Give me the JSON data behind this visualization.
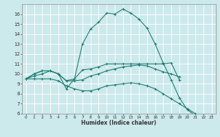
{
  "title": "",
  "xlabel": "Humidex (Indice chaleur)",
  "bg_color": "#cce9ec",
  "grid_color": "#ffffff",
  "line_color": "#1a7a6e",
  "xlim": [
    -0.5,
    23.5
  ],
  "ylim": [
    6,
    17
  ],
  "xticks": [
    0,
    1,
    2,
    3,
    4,
    5,
    6,
    7,
    8,
    9,
    10,
    11,
    12,
    13,
    14,
    15,
    16,
    17,
    18,
    19,
    20,
    21,
    22,
    23
  ],
  "yticks": [
    6,
    7,
    8,
    9,
    10,
    11,
    12,
    13,
    14,
    15,
    16
  ],
  "series": [
    {
      "x": [
        0,
        1,
        2,
        3,
        4,
        5,
        6,
        7,
        8,
        9,
        10,
        11,
        12,
        13,
        14,
        15,
        16,
        17,
        18,
        19,
        20,
        21,
        22
      ],
      "y": [
        9.5,
        10.0,
        10.3,
        10.3,
        10.0,
        8.5,
        9.5,
        13.0,
        14.5,
        15.2,
        16.1,
        16.0,
        16.5,
        16.1,
        15.5,
        14.6,
        13.0,
        11.1,
        9.4,
        7.6,
        6.4,
        5.8,
        5.7
      ]
    },
    {
      "x": [
        0,
        1,
        2,
        3,
        4,
        5,
        6,
        7,
        8,
        9,
        10,
        11,
        12,
        13,
        14,
        15,
        16,
        17,
        18,
        19
      ],
      "y": [
        9.5,
        10.0,
        10.3,
        10.3,
        10.0,
        9.3,
        9.5,
        10.4,
        10.5,
        10.7,
        11.0,
        11.0,
        11.0,
        11.0,
        11.0,
        11.0,
        11.0,
        11.0,
        11.1,
        9.4
      ]
    },
    {
      "x": [
        0,
        1,
        2,
        3,
        4,
        5,
        6,
        7,
        8,
        9,
        10,
        11,
        12,
        13,
        14,
        15,
        16,
        17,
        18,
        19
      ],
      "y": [
        9.5,
        9.8,
        10.0,
        10.3,
        10.0,
        9.3,
        9.3,
        9.4,
        9.8,
        10.0,
        10.3,
        10.5,
        10.7,
        10.8,
        10.9,
        10.8,
        10.5,
        10.2,
        10.0,
        9.7
      ]
    },
    {
      "x": [
        0,
        1,
        2,
        3,
        4,
        5,
        6,
        7,
        8,
        9,
        10,
        11,
        12,
        13,
        14,
        15,
        16,
        17,
        18,
        19,
        20,
        21,
        22,
        23
      ],
      "y": [
        9.5,
        9.5,
        9.5,
        9.5,
        9.3,
        8.8,
        8.5,
        8.3,
        8.3,
        8.5,
        8.8,
        8.9,
        9.0,
        9.1,
        9.0,
        8.8,
        8.5,
        8.0,
        7.5,
        7.0,
        6.5,
        6.0,
        5.8,
        5.7
      ]
    }
  ]
}
